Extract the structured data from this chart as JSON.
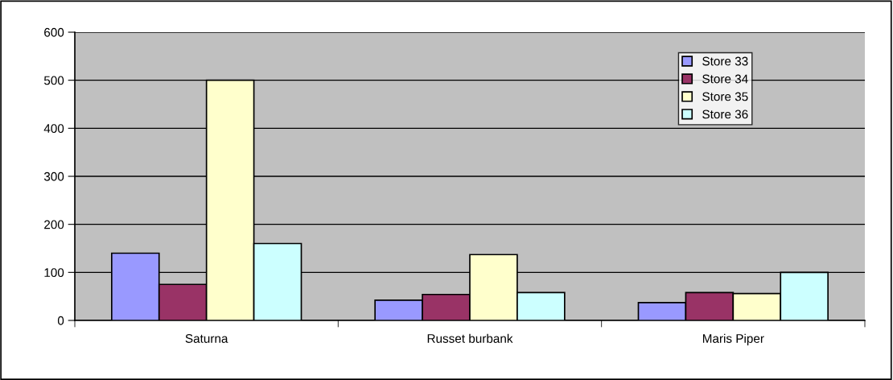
{
  "chart_data": {
    "type": "bar",
    "categories": [
      "Saturna",
      "Russet burbank",
      "Maris Piper"
    ],
    "series": [
      {
        "name": "Store 33",
        "color": "#9999ff",
        "values": [
          140,
          42,
          37
        ]
      },
      {
        "name": "Store 34",
        "color": "#993366",
        "values": [
          75,
          54,
          58
        ]
      },
      {
        "name": "Store 35",
        "color": "#ffffcc",
        "values": [
          500,
          137,
          56
        ]
      },
      {
        "name": "Store 36",
        "color": "#ccffff",
        "values": [
          160,
          58,
          100
        ]
      }
    ],
    "ylim": [
      0,
      600
    ],
    "yticks": [
      0,
      100,
      200,
      300,
      400,
      500,
      600
    ],
    "grid": "y",
    "legend": "top right"
  }
}
